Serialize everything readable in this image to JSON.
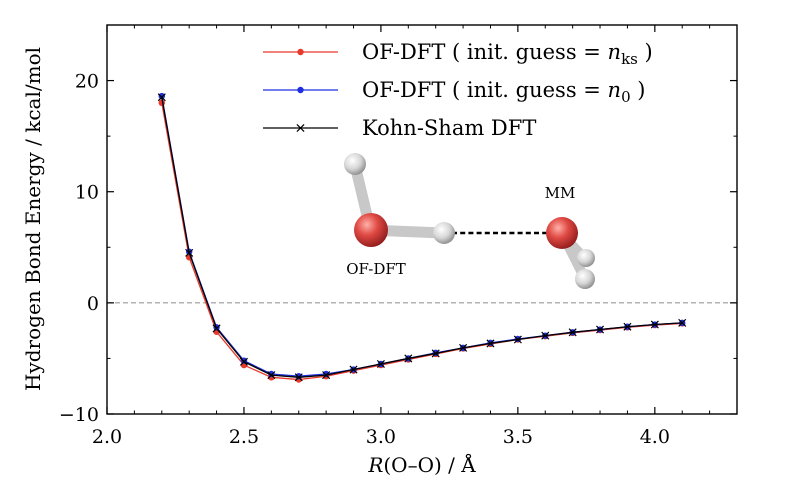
{
  "chart_data": {
    "type": "line",
    "xlabel": "R(O–O) / Å",
    "xlabel_parts": {
      "var": "R",
      "rest": "(O–O) / Å"
    },
    "ylabel": "Hydrogen Bond Energy / kcal/mol",
    "xlim": [
      2.0,
      4.3
    ],
    "ylim": [
      -10,
      25
    ],
    "xticks": [
      2.0,
      2.5,
      3.0,
      3.5,
      4.0
    ],
    "xtick_labels": [
      "2.0",
      "2.5",
      "3.0",
      "3.5",
      "4.0"
    ],
    "yticks": [
      -10,
      0,
      10,
      20
    ],
    "ytick_labels": [
      "−10",
      "0",
      "10",
      "20"
    ],
    "reference_line": {
      "y": 0,
      "style": "dashed",
      "color": "#999999"
    },
    "x": [
      2.2,
      2.3,
      2.4,
      2.5,
      2.6,
      2.7,
      2.8,
      2.9,
      3.0,
      3.1,
      3.2,
      3.3,
      3.4,
      3.5,
      3.6,
      3.7,
      3.8,
      3.9,
      4.0,
      4.1
    ],
    "series": [
      {
        "name": "OF-DFT ( init. guess = n_ks )",
        "legend": {
          "pre": "OF-DFT ( init. guess = ",
          "var": "n",
          "sub": "ks",
          "post": " )"
        },
        "color": "#e8392c",
        "marker": "circle",
        "values": [
          18.0,
          4.1,
          -2.6,
          -5.6,
          -6.7,
          -6.9,
          -6.6,
          -6.1,
          -5.6,
          -5.1,
          -4.6,
          -4.1,
          -3.7,
          -3.3,
          -3.0,
          -2.7,
          -2.45,
          -2.2,
          -2.0,
          -1.85
        ]
      },
      {
        "name": "OF-DFT ( init. guess = n_0 )",
        "legend": {
          "pre": "OF-DFT ( init. guess = ",
          "var": "n",
          "sub": "0",
          "post": "  )"
        },
        "color": "#1f2fe0",
        "marker": "circle",
        "values": [
          18.6,
          4.6,
          -2.2,
          -5.2,
          -6.4,
          -6.6,
          -6.4,
          -6.0,
          -5.5,
          -5.0,
          -4.5,
          -4.05,
          -3.6,
          -3.25,
          -2.95,
          -2.65,
          -2.4,
          -2.15,
          -1.95,
          -1.8
        ]
      },
      {
        "name": "Kohn-Sham DFT",
        "legend": {
          "pre": "Kohn-Sham DFT",
          "var": "",
          "sub": "",
          "post": ""
        },
        "color": "#000000",
        "marker": "x",
        "values": [
          18.5,
          4.5,
          -2.3,
          -5.3,
          -6.5,
          -6.7,
          -6.5,
          -6.0,
          -5.5,
          -5.0,
          -4.55,
          -4.05,
          -3.65,
          -3.3,
          -2.95,
          -2.65,
          -2.4,
          -2.15,
          -1.95,
          -1.8
        ]
      }
    ],
    "annotations": {
      "left_molecule": "OF-DFT",
      "right_molecule": "MM"
    },
    "legend_position": "top-right"
  }
}
